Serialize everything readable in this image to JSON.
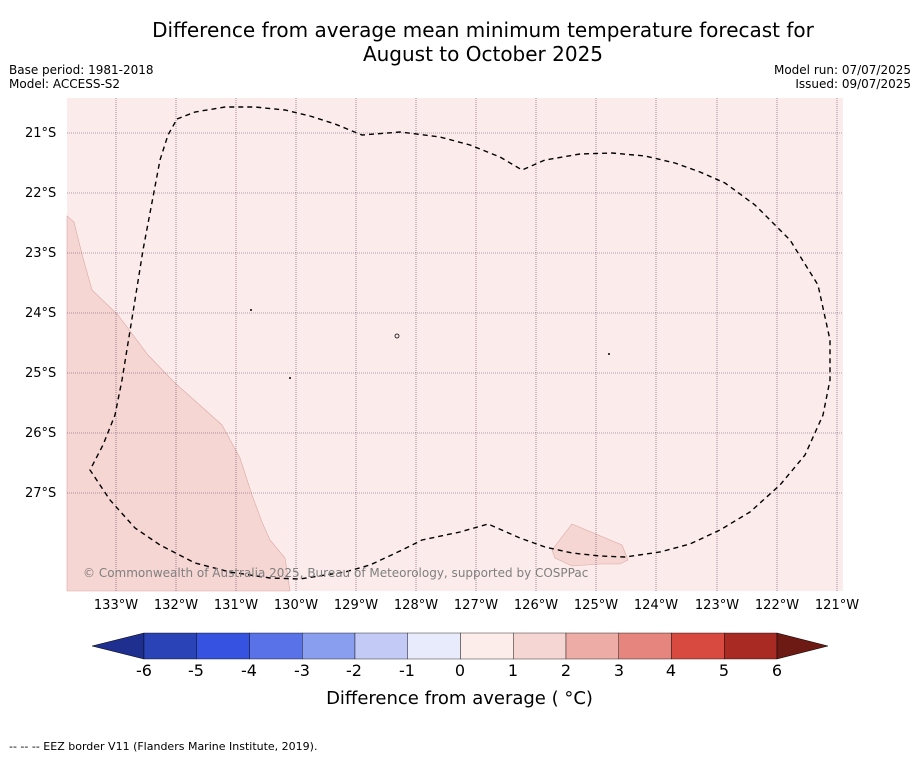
{
  "title_line1": "Difference from average mean minimum temperature forecast for",
  "title_line2": "August to October 2025",
  "meta_left": {
    "base_period": "Base period: 1981-2018",
    "model": "Model: ACCESS-S2"
  },
  "meta_right": {
    "model_run": "Model run: 07/07/2025",
    "issued": "Issued: 09/07/2025"
  },
  "lat_labels": [
    "21°S",
    "22°S",
    "23°S",
    "24°S",
    "25°S",
    "26°S",
    "27°S"
  ],
  "lon_labels": [
    "133°W",
    "132°W",
    "131°W",
    "130°W",
    "129°W",
    "128°W",
    "127°W",
    "126°W",
    "125°W",
    "124°W",
    "123°W",
    "122°W",
    "121°W"
  ],
  "copyright": "© Commonwealth of Australia 2025, Bureau of Meteorology, supported by COSPPac",
  "colorbar": {
    "label": "Difference from average ( °C)",
    "ticks": [
      "-6",
      "-5",
      "-4",
      "-3",
      "-2",
      "-1",
      "0",
      "1",
      "2",
      "3",
      "4",
      "5",
      "6"
    ],
    "colors": [
      "#1f2f8f",
      "#2a44b8",
      "#3552e0",
      "#5a72e8",
      "#8a9ef0",
      "#c2caf5",
      "#e8ebfb",
      "#fcecea",
      "#f6d6d3",
      "#edaca6",
      "#e5857e",
      "#d84a40",
      "#a92a23",
      "#6e1a14"
    ],
    "extend_low_color": "#1f2f8f",
    "extend_high_color": "#6e1a14"
  },
  "map_colors": {
    "background": "#fbeceb",
    "land_patch": "#f6d6d3",
    "gridline": "#6a4a6a",
    "eez": "#000000"
  },
  "footnote": "--  --  -- EEZ border V11 (Flanders Marine Institute, 2019)."
}
